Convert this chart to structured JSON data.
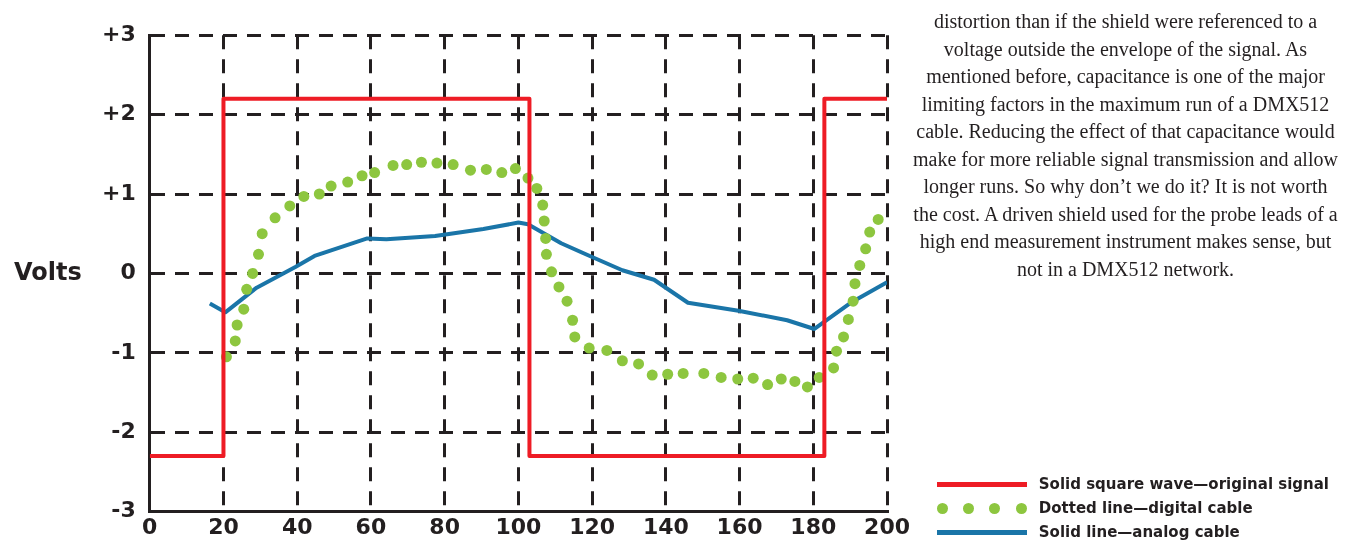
{
  "chart_data": {
    "type": "line",
    "ylabel": "Volts",
    "xlim": [
      0,
      200
    ],
    "xticks": [
      0,
      20,
      40,
      60,
      80,
      100,
      120,
      140,
      160,
      180,
      200
    ],
    "ylim": [
      -3,
      3
    ],
    "yticks": [
      {
        "value": -3,
        "label": "-3"
      },
      {
        "value": -2,
        "label": "-2"
      },
      {
        "value": -1,
        "label": "-1"
      },
      {
        "value": 0,
        "label": "0"
      },
      {
        "value": 1,
        "label": "+1"
      },
      {
        "value": 2,
        "label": "+2"
      },
      {
        "value": 3,
        "label": "+3"
      }
    ],
    "grid": true,
    "legend": "bottom right",
    "annotations": [
      "distortion than if the shield were referenced to a voltage outside the envelope of the signal. As mentioned before, capacitance is one of the major limiting factors in the maximum run of a DMX512 cable. Reducing the effect of that capacitance would make for more reliable signal transmission and allow longer runs. So why don’t we do it? It is not worth the cost. A driven shield used for the probe leads of a high end measurement instrument makes sense, but not in a DMX512 network."
    ],
    "series": [
      {
        "name": "Solid square wave—original signal",
        "type": "step",
        "color": "#ee1c25",
        "line_style": "solid",
        "marker": "none",
        "x": [
          0,
          20,
          103,
          183,
          200
        ],
        "values": [
          -2.3,
          2.2,
          -2.3,
          2.2,
          2.2
        ]
      },
      {
        "name": "Dotted line—digital cable",
        "type": "scatter",
        "color": "#8dc63f",
        "marker": "circle",
        "x": [
          20.8,
          23.2,
          23.7,
          25.5,
          26.3,
          27.9,
          29.5,
          30.5,
          34,
          38,
          41.8,
          46,
          49.2,
          53.7,
          57.6,
          61,
          66,
          69.7,
          73.7,
          77.9,
          82.3,
          87,
          91.3,
          95.5,
          99.2,
          102.6,
          105,
          106.6,
          107,
          107.4,
          107.6,
          109,
          111,
          113.2,
          114.7,
          115.3,
          119.2,
          124,
          128.2,
          132.6,
          136.3,
          140.5,
          144.7,
          150.3,
          155,
          159.5,
          163.7,
          167.6,
          171.3,
          175,
          178.4,
          181.6,
          185.5,
          186.3,
          188.2,
          189.5,
          190.8,
          191.3,
          192.6,
          194.2,
          195.3,
          197.6
        ],
        "values": [
          -1.05,
          -0.85,
          -0.65,
          -0.45,
          -0.2,
          0,
          0.24,
          0.5,
          0.7,
          0.85,
          0.97,
          1,
          1.1,
          1.15,
          1.23,
          1.27,
          1.36,
          1.37,
          1.4,
          1.39,
          1.37,
          1.3,
          1.31,
          1.27,
          1.32,
          1.2,
          1.07,
          0.86,
          0.66,
          0.44,
          0.24,
          0.02,
          -0.17,
          -0.35,
          -0.59,
          -0.8,
          -0.94,
          -0.97,
          -1.1,
          -1.14,
          -1.28,
          -1.27,
          -1.26,
          -1.26,
          -1.31,
          -1.33,
          -1.32,
          -1.4,
          -1.33,
          -1.36,
          -1.43,
          -1.31,
          -1.19,
          -0.98,
          -0.8,
          -0.58,
          -0.35,
          -0.13,
          0.1,
          0.31,
          0.52,
          0.68
        ]
      },
      {
        "name": "Solid line—analog cable",
        "color": "#1a75a8",
        "line_style": "solid",
        "marker": "none",
        "x": [
          16.3,
          20.5,
          29,
          39.5,
          44.7,
          49.2,
          59,
          64.2,
          77.4,
          90.5,
          100,
          102.6,
          111.6,
          120.3,
          128.2,
          136.8,
          146,
          159.7,
          172.9,
          180.3,
          190.5,
          200
        ],
        "values": [
          -0.38,
          -0.49,
          -0.18,
          0.08,
          0.22,
          0.29,
          0.44,
          0.43,
          0.47,
          0.56,
          0.64,
          0.62,
          0.38,
          0.2,
          0.04,
          -0.08,
          -0.37,
          -0.47,
          -0.59,
          -0.7,
          -0.36,
          -0.11
        ]
      }
    ]
  }
}
